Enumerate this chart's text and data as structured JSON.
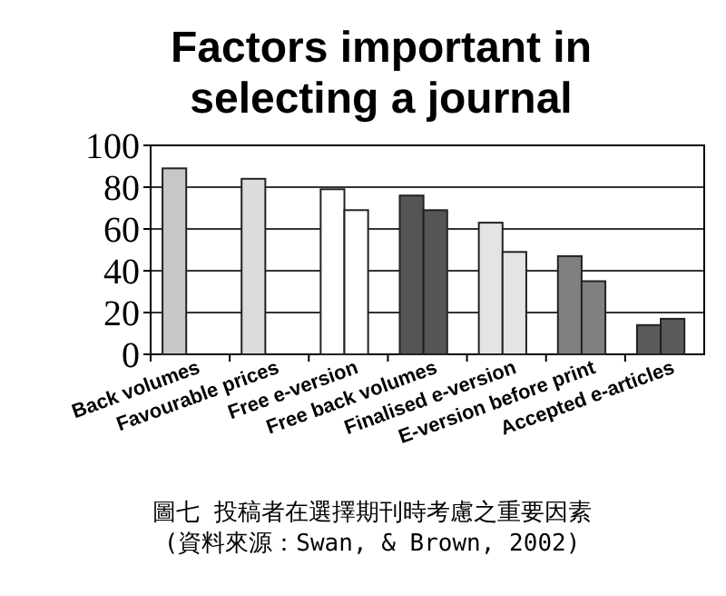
{
  "chart_data": {
    "type": "bar",
    "title": "Factors important in selecting a journal",
    "categories": [
      "Back volumes",
      "Favourable prices",
      "Free e-version",
      "Free back volumes",
      "Finalised e-version",
      "E-version before print",
      "Accepted e-articles"
    ],
    "series": [
      {
        "colors": [
          "#c8c8c8",
          "#dcdcdc",
          "#ffffff",
          "#555555",
          "#e4e4e4",
          "#808080",
          "#5a5a5a"
        ],
        "values": [
          89,
          84,
          79,
          76,
          63,
          47,
          14
        ]
      },
      {
        "colors": [
          null,
          null,
          "#ffffff",
          "#555555",
          "#e4e4e4",
          "#808080",
          "#5a5a5a"
        ],
        "values": [
          null,
          null,
          69,
          69,
          49,
          35,
          17
        ]
      }
    ],
    "ylim": [
      0,
      100
    ],
    "yticks": [
      0,
      20,
      40,
      60,
      80,
      100
    ],
    "grid": "y",
    "annotations": [
      "圖七 投稿者在選擇期刊時考慮之重要因素",
      "(資料來源：Swan, & Brown, 2002)"
    ]
  }
}
